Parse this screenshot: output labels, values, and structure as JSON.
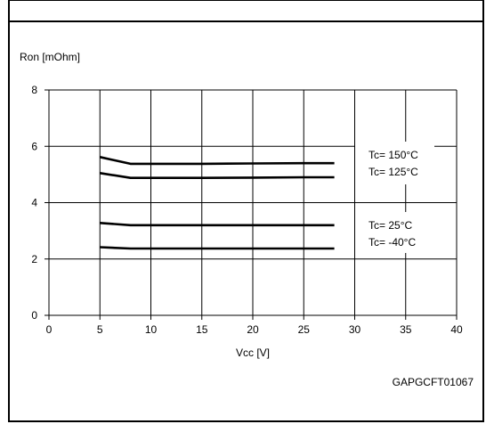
{
  "figure_code": "GAPGCFT01067",
  "chart_data": {
    "type": "line",
    "ylabel": "Ron [mOhm]",
    "xlabel": "Vcc [V]",
    "xlim": [
      0,
      40
    ],
    "ylim": [
      0,
      8
    ],
    "x_ticks": [
      "0",
      "5",
      "10",
      "15",
      "20",
      "25",
      "30",
      "35",
      "40"
    ],
    "y_ticks": [
      "0",
      "2",
      "4",
      "6",
      "8"
    ],
    "grid": true,
    "series": [
      {
        "name": "Tc= 150°C",
        "x": [
          5,
          8,
          10,
          15,
          20,
          25,
          28
        ],
        "y": [
          5.62,
          5.38,
          5.38,
          5.38,
          5.39,
          5.4,
          5.4
        ]
      },
      {
        "name": "Tc= 125°C",
        "x": [
          5,
          8,
          10,
          15,
          20,
          25,
          28
        ],
        "y": [
          5.05,
          4.88,
          4.88,
          4.88,
          4.89,
          4.9,
          4.9
        ]
      },
      {
        "name": "Tc= 25°C",
        "x": [
          5,
          8,
          10,
          15,
          20,
          25,
          28
        ],
        "y": [
          3.28,
          3.2,
          3.2,
          3.2,
          3.2,
          3.2,
          3.2
        ]
      },
      {
        "name": "Tc= -40°C",
        "x": [
          5,
          8,
          10,
          15,
          20,
          25,
          28
        ],
        "y": [
          2.42,
          2.37,
          2.37,
          2.37,
          2.37,
          2.37,
          2.37
        ]
      }
    ],
    "annotations": [
      {
        "group": "high",
        "lines": [
          "Tc= 150°C",
          "Tc= 125°C"
        ]
      },
      {
        "group": "low",
        "lines": [
          "Tc= 25°C",
          "Tc= -40°C"
        ]
      }
    ],
    "colors": {
      "line": "#000000",
      "grid": "#000000",
      "background": "#ffffff"
    }
  }
}
